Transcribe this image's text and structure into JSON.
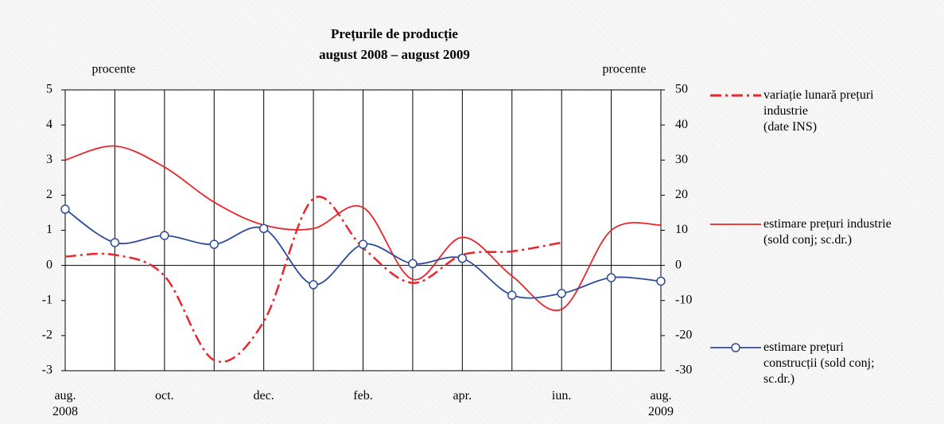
{
  "chart_data": {
    "type": "line",
    "title": "Prețurile de producție",
    "subtitle": "august 2008 – august 2009",
    "ylabel": "procente",
    "y2label": "procente",
    "categories": [
      "aug.\n2008",
      null,
      "oct.",
      null,
      "dec.",
      null,
      "feb.",
      null,
      "apr.",
      null,
      "iun.",
      null,
      "aug.\n2009"
    ],
    "ylim": [
      -3,
      5
    ],
    "yticks": [
      -3,
      -2,
      -1,
      0,
      1,
      2,
      3,
      4,
      5
    ],
    "y2lim": [
      -30,
      50
    ],
    "y2ticks": [
      -30,
      -20,
      -10,
      0,
      10,
      20,
      30,
      40,
      50
    ],
    "grid": "x",
    "legend": "right",
    "series": [
      {
        "name": "variație lunară prețuri\nindustrie\n(date INS)",
        "color": "#e8262b",
        "style": "dashdot",
        "values": [
          0.25,
          0.3,
          -0.3,
          -2.7,
          -1.6,
          1.9,
          0.5,
          -0.5,
          0.3,
          0.4,
          0.65,
          null,
          null
        ]
      },
      {
        "name": "estimare prețuri industrie\n(sold conj; sc.dr.)",
        "color": "#e8262b",
        "style": "solid",
        "axis": "y2",
        "values": [
          30,
          34,
          28,
          18,
          11.5,
          10.5,
          16.5,
          -4,
          8,
          -3,
          -12.5,
          10,
          11.5
        ]
      },
      {
        "name": "estimare prețuri\nconstrucții (sold conj;\nsc.dr.)",
        "color": "#2e4b9b",
        "style": "marker",
        "axis": "y2",
        "values": [
          16,
          6.5,
          8.5,
          6,
          10.5,
          -5.5,
          6,
          0.5,
          2,
          -8.5,
          -8,
          -3.5,
          -4.5
        ]
      }
    ]
  }
}
